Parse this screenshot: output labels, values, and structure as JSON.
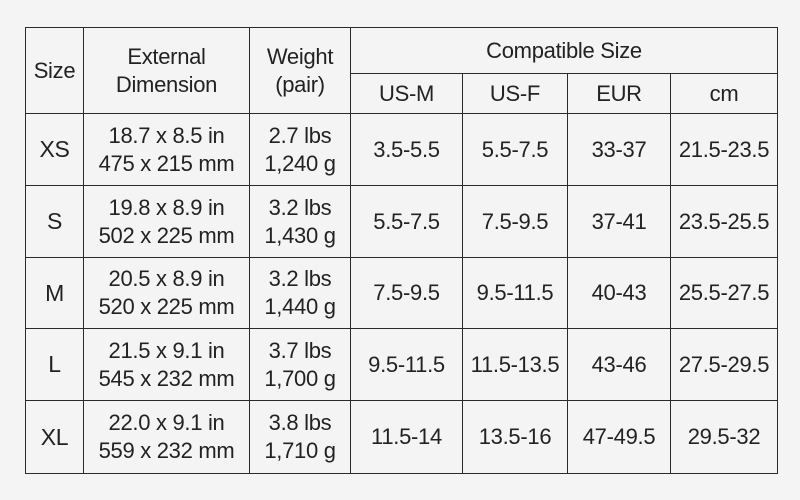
{
  "table": {
    "headers": {
      "size": "Size",
      "dimension_line1": "External",
      "dimension_line2": "Dimension",
      "weight_line1": "Weight",
      "weight_line2": "(pair)",
      "compatible": "Compatible Size",
      "sub": [
        "US-M",
        "US-F",
        "EUR",
        "cm"
      ]
    },
    "rows": [
      {
        "size": "XS",
        "dim_in": "18.7 x 8.5 in",
        "dim_mm": "475 x 215 mm",
        "weight_lbs": "2.7 lbs",
        "weight_g": "1,240 g",
        "us_m": "3.5-5.5",
        "us_f": "5.5-7.5",
        "eur": "33-37",
        "cm": "21.5-23.5"
      },
      {
        "size": "S",
        "dim_in": "19.8 x 8.9 in",
        "dim_mm": "502 x 225 mm",
        "weight_lbs": "3.2 lbs",
        "weight_g": "1,430 g",
        "us_m": "5.5-7.5",
        "us_f": "7.5-9.5",
        "eur": "37-41",
        "cm": "23.5-25.5"
      },
      {
        "size": "M",
        "dim_in": "20.5 x 8.9 in",
        "dim_mm": "520 x 225 mm",
        "weight_lbs": "3.2 lbs",
        "weight_g": "1,440 g",
        "us_m": "7.5-9.5",
        "us_f": "9.5-11.5",
        "eur": "40-43",
        "cm": "25.5-27.5"
      },
      {
        "size": "L",
        "dim_in": "21.5 x 9.1 in",
        "dim_mm": "545 x 232 mm",
        "weight_lbs": "3.7 lbs",
        "weight_g": "1,700 g",
        "us_m": "9.5-11.5",
        "us_f": "11.5-13.5",
        "eur": "43-46",
        "cm": "27.5-29.5"
      },
      {
        "size": "XL",
        "dim_in": "22.0 x 9.1 in",
        "dim_mm": "559 x 232 mm",
        "weight_lbs": "3.8 lbs",
        "weight_g": "1,710 g",
        "us_m": "11.5-14",
        "us_f": "13.5-16",
        "eur": "47-49.5",
        "cm": "29.5-32"
      }
    ]
  }
}
